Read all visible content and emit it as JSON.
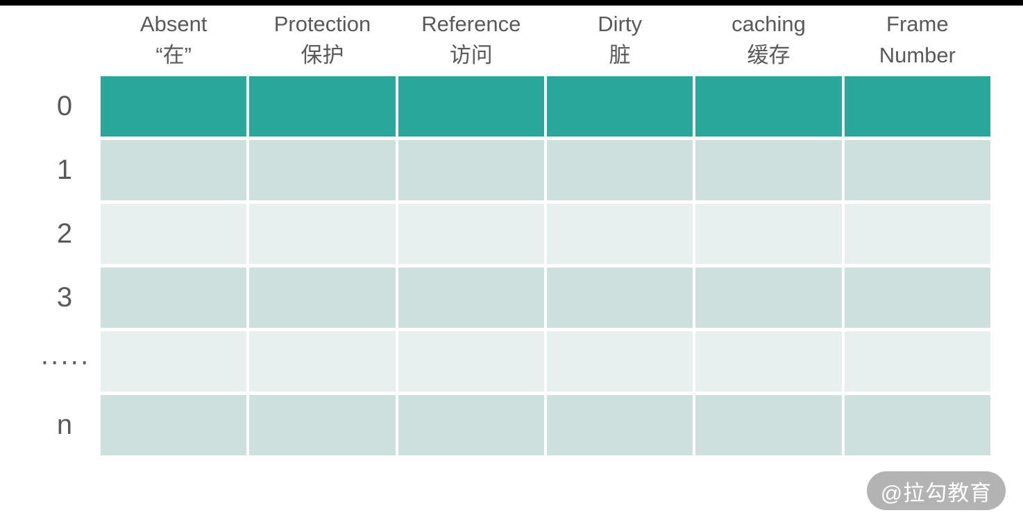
{
  "colors": {
    "top-bar": "#000000",
    "page-bg": "#FFFFFF",
    "row-dark": "#29A79A",
    "row-medium": "#CDE0DD",
    "row-light": "#E7F0EE",
    "label-text": "#595959",
    "watermark-bg": "#B3B3B3",
    "watermark-text": "#FFFFFF"
  },
  "header": {
    "columns": [
      {
        "line1": "Absent",
        "line2": "“在”"
      },
      {
        "line1": "Protection",
        "line2": "保护"
      },
      {
        "line1": "Reference",
        "line2": "访问"
      },
      {
        "line1": "Dirty",
        "line2": "脏"
      },
      {
        "line1": "caching",
        "line2": "缓存"
      },
      {
        "line1": "Frame",
        "line2": "Number"
      }
    ]
  },
  "rows": [
    {
      "label": "0",
      "shade": "dark"
    },
    {
      "label": "1",
      "shade": "medium"
    },
    {
      "label": "2",
      "shade": "light"
    },
    {
      "label": "3",
      "shade": "medium"
    },
    {
      "label": "·····",
      "shade": "light"
    },
    {
      "label": "n",
      "shade": "medium"
    }
  ],
  "watermark": {
    "text": "@拉勾教育"
  }
}
